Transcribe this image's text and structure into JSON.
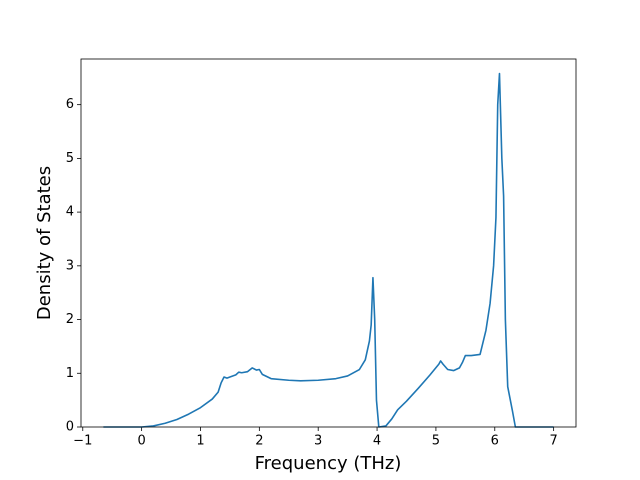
{
  "chart_data": {
    "type": "line",
    "xlabel": "Frequency (THz)",
    "ylabel": "Density of States",
    "color": "#1f77b4",
    "x": [
      -0.65,
      0,
      0.2,
      0.4,
      0.6,
      0.8,
      1.0,
      1.2,
      1.3,
      1.35,
      1.4,
      1.45,
      1.5,
      1.6,
      1.65,
      1.7,
      1.8,
      1.88,
      1.95,
      2.0,
      2.05,
      2.2,
      2.5,
      2.7,
      3.0,
      3.3,
      3.5,
      3.7,
      3.8,
      3.87,
      3.9,
      3.93,
      3.96,
      3.99,
      4.03,
      4.15,
      4.25,
      4.35,
      4.5,
      4.7,
      4.9,
      5.05,
      5.08,
      5.12,
      5.2,
      5.3,
      5.4,
      5.45,
      5.5,
      5.6,
      5.75,
      5.85,
      5.92,
      5.98,
      6.02,
      6.05,
      6.08,
      6.12,
      6.15,
      6.18,
      6.22,
      6.3,
      6.35,
      7.0
    ],
    "values": [
      0,
      0,
      0.02,
      0.07,
      0.14,
      0.24,
      0.36,
      0.52,
      0.65,
      0.82,
      0.93,
      0.91,
      0.93,
      0.97,
      1.02,
      1.01,
      1.03,
      1.1,
      1.06,
      1.07,
      0.98,
      0.9,
      0.87,
      0.86,
      0.87,
      0.9,
      0.95,
      1.07,
      1.25,
      1.6,
      1.9,
      2.78,
      2.0,
      0.5,
      0,
      0.02,
      0.15,
      0.32,
      0.48,
      0.72,
      0.97,
      1.17,
      1.23,
      1.17,
      1.07,
      1.05,
      1.1,
      1.2,
      1.33,
      1.33,
      1.35,
      1.8,
      2.3,
      3.0,
      3.9,
      6.0,
      6.58,
      5.0,
      4.3,
      2.0,
      0.75,
      0.3,
      0,
      0
    ],
    "xlim": [
      -1.03,
      7.38
    ],
    "xticks": [
      {
        "value": -1,
        "label": "−1"
      },
      0,
      1,
      2,
      3,
      4,
      5,
      6,
      7
    ],
    "ylim": [
      0,
      6.85
    ],
    "yticks": [
      0,
      1,
      2,
      3,
      4,
      5,
      6
    ]
  }
}
